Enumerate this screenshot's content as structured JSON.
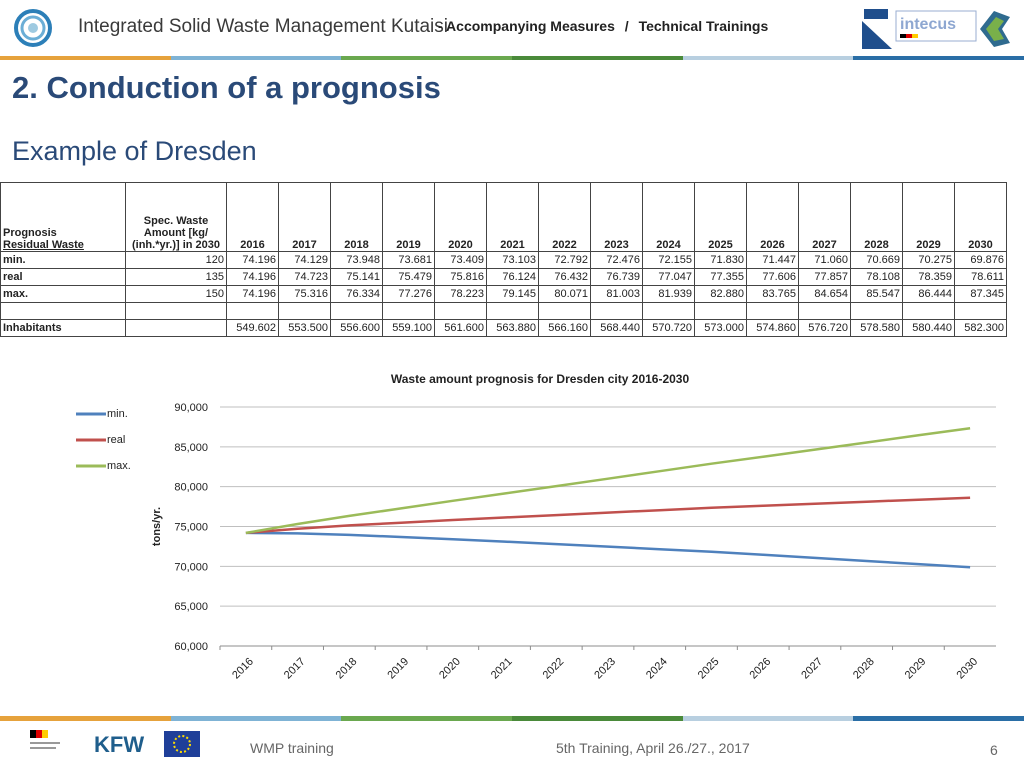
{
  "header": {
    "project_title": "Integrated Solid Waste Management Kutaisi",
    "breadcrumb": {
      "prefix": "-",
      "section": "Accompanying Measures",
      "separator": "/",
      "page": "Technical Trainings"
    },
    "partner_logo_text": "intecus"
  },
  "slide": {
    "title": "2. Conduction of a prognosis",
    "subtitle": "Example of Dresden"
  },
  "table": {
    "corner_label_1": "Prognosis",
    "corner_label_2": "Residual Waste",
    "spec_header": "Spec. Waste Amount [kg/ (inh.*yr.)] in 2030",
    "years": [
      "2016",
      "2017",
      "2018",
      "2019",
      "2020",
      "2021",
      "2022",
      "2023",
      "2024",
      "2025",
      "2026",
      "2027",
      "2028",
      "2029",
      "2030"
    ],
    "rows": [
      {
        "label": "min.",
        "spec": "120",
        "values": [
          "74.196",
          "74.129",
          "73.948",
          "73.681",
          "73.409",
          "73.103",
          "72.792",
          "72.476",
          "72.155",
          "71.830",
          "71.447",
          "71.060",
          "70.669",
          "70.275",
          "69.876"
        ]
      },
      {
        "label": "real",
        "spec": "135",
        "values": [
          "74.196",
          "74.723",
          "75.141",
          "75.479",
          "75.816",
          "76.124",
          "76.432",
          "76.739",
          "77.047",
          "77.355",
          "77.606",
          "77.857",
          "78.108",
          "78.359",
          "78.611"
        ]
      },
      {
        "label": "max.",
        "spec": "150",
        "values": [
          "74.196",
          "75.316",
          "76.334",
          "77.276",
          "78.223",
          "79.145",
          "80.071",
          "81.003",
          "81.939",
          "82.880",
          "83.765",
          "84.654",
          "85.547",
          "86.444",
          "87.345"
        ]
      }
    ],
    "inhabitants_label": "Inhabitants",
    "inhabitants": [
      "549.602",
      "553.500",
      "556.600",
      "559.100",
      "561.600",
      "563.880",
      "566.160",
      "568.440",
      "570.720",
      "573.000",
      "574.860",
      "576.720",
      "578.580",
      "580.440",
      "582.300"
    ]
  },
  "chart_data": {
    "type": "line",
    "title": "Waste amount prognosis for Dresden city 2016-2030",
    "xlabel": "",
    "ylabel": "tons/yr.",
    "x": [
      "2016",
      "2017",
      "2018",
      "2019",
      "2020",
      "2021",
      "2022",
      "2023",
      "2024",
      "2025",
      "2026",
      "2027",
      "2028",
      "2029",
      "2030"
    ],
    "ylim": [
      60000,
      90000
    ],
    "yticks": [
      "60,000",
      "65,000",
      "70,000",
      "75,000",
      "80,000",
      "85,000",
      "90,000"
    ],
    "ytick_values": [
      60000,
      65000,
      70000,
      75000,
      80000,
      85000,
      90000
    ],
    "grid": true,
    "legend_position": "top-left",
    "series": [
      {
        "name": "min.",
        "color": "#4f81bd",
        "values": [
          74196,
          74129,
          73948,
          73681,
          73409,
          73103,
          72792,
          72476,
          72155,
          71830,
          71447,
          71060,
          70669,
          70275,
          69876
        ]
      },
      {
        "name": "real",
        "color": "#c0504d",
        "values": [
          74196,
          74723,
          75141,
          75479,
          75816,
          76124,
          76432,
          76739,
          77047,
          77355,
          77606,
          77857,
          78108,
          78359,
          78611
        ]
      },
      {
        "name": "max.",
        "color": "#9bbb59",
        "values": [
          74196,
          75316,
          76334,
          77276,
          78223,
          79145,
          80071,
          81003,
          81939,
          82880,
          83765,
          84654,
          85547,
          86444,
          87345
        ]
      }
    ]
  },
  "footer": {
    "left": "WMP training",
    "middle": "5th Training, April 26./27., 2017",
    "page_number": "6",
    "kfw_logo": "KFW"
  },
  "colors": {
    "title_blue": "#2a4a78",
    "accent_bar": [
      "#e6a23c",
      "#7fb3d5",
      "#6aa84f",
      "#4a8a3a",
      "#b8cfe0",
      "#2a6ea6"
    ]
  }
}
